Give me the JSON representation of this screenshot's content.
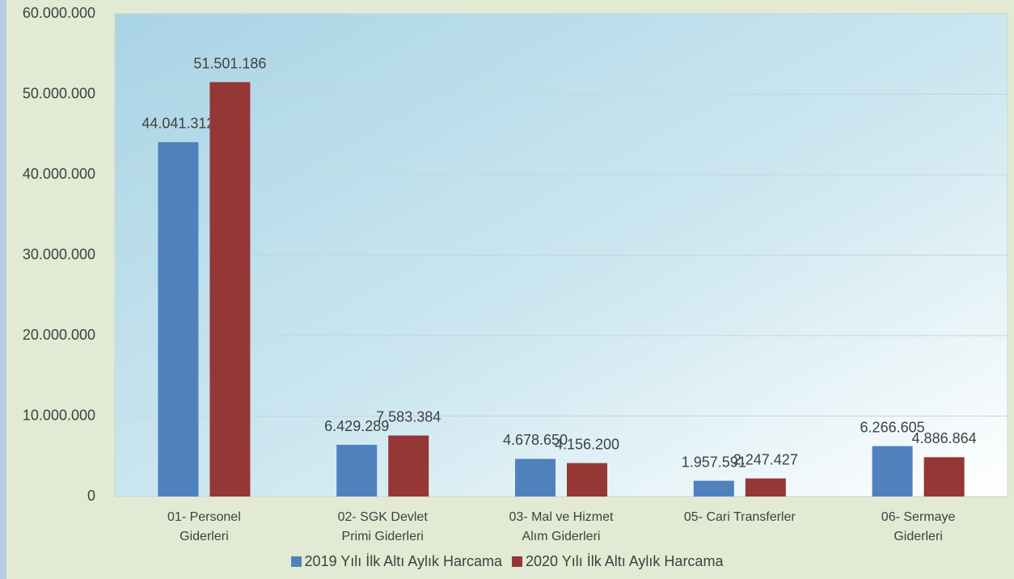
{
  "chart_data": {
    "type": "bar",
    "categories": [
      "01- Personel Giderleri",
      "02- SGK Devlet Primi Giderleri",
      "03- Mal ve Hizmet Alım Giderleri",
      "05- Cari Transferler",
      "06- Sermaye Giderleri"
    ],
    "series": [
      {
        "name": "2019 Yılı İlk Altı Aylık Harcama",
        "color": "#4f81bd",
        "values": [
          44041312,
          6429289,
          4678650,
          1957591,
          6266605
        ],
        "value_labels": [
          "44.041.312",
          "6.429.289",
          "4.678.650",
          "1.957.591",
          "6.266.605"
        ]
      },
      {
        "name": "2020 Yılı İlk Altı Aylık Harcama",
        "color": "#953735",
        "values": [
          51501186,
          7583384,
          4156200,
          2247427,
          4886864
        ],
        "value_labels": [
          "51.501.186",
          "7.583.384",
          "4.156.200",
          "2.247.427",
          "4.886.864"
        ]
      }
    ],
    "ylim": [
      0,
      60000000
    ],
    "yticks": [
      {
        "value": 0,
        "label": "0"
      },
      {
        "value": 10000000,
        "label": "10.000.000"
      },
      {
        "value": 20000000,
        "label": "20.000.000"
      },
      {
        "value": 30000000,
        "label": "30.000.000"
      },
      {
        "value": 40000000,
        "label": "40.000.000"
      },
      {
        "value": 50000000,
        "label": "50.000.000"
      },
      {
        "value": 60000000,
        "label": "60.000.000"
      }
    ],
    "grid": true,
    "legend": "bottom"
  }
}
